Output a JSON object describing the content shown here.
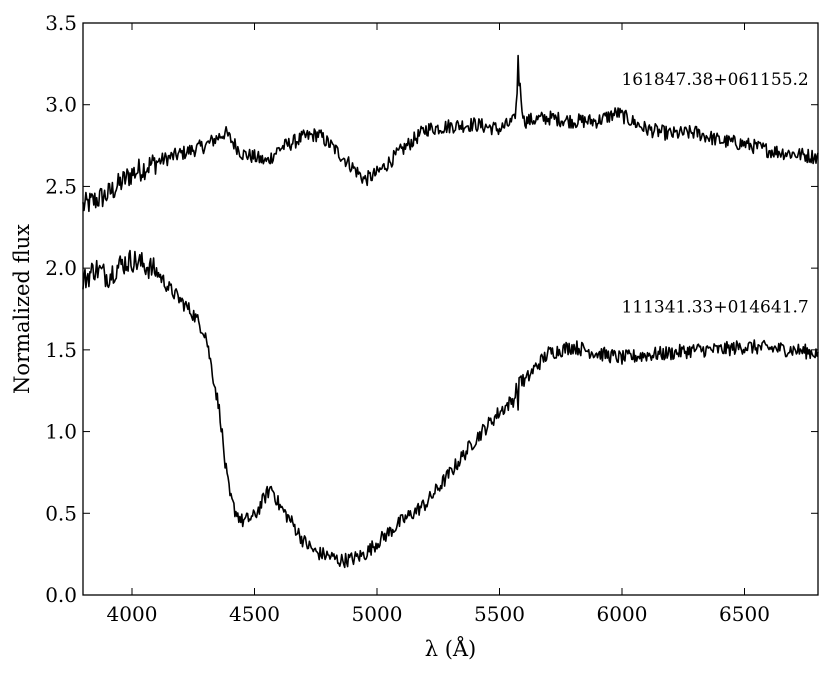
{
  "chart_data": {
    "type": "line",
    "title": "",
    "xlabel": "λ (Å)",
    "ylabel": "Normalized flux",
    "xlim": [
      3800,
      6800
    ],
    "ylim": [
      0.0,
      3.5
    ],
    "xticks": [
      4000,
      4500,
      5000,
      5500,
      6000,
      6500
    ],
    "xtick_labels": [
      "4000",
      "4500",
      "5000",
      "5500",
      "6000",
      "6500"
    ],
    "yticks": [
      0.0,
      0.5,
      1.0,
      1.5,
      2.0,
      2.5,
      3.0,
      3.5
    ],
    "ytick_labels": [
      "0.0",
      "0.5",
      "1.0",
      "1.5",
      "2.0",
      "2.5",
      "3.0",
      "3.5"
    ],
    "grid": false,
    "legend": "none",
    "line_color": "#000000",
    "series": [
      {
        "name": "161847.38+061155.2",
        "x": [
          3800,
          3900,
          4000,
          4100,
          4200,
          4300,
          4380,
          4450,
          4500,
          4550,
          4600,
          4700,
          4760,
          4820,
          4880,
          4950,
          5000,
          5100,
          5200,
          5300,
          5400,
          5500,
          5560,
          5580,
          5600,
          5700,
          5800,
          5900,
          5980,
          6100,
          6200,
          6300,
          6400,
          6500,
          6600,
          6700,
          6800
        ],
        "y": [
          2.38,
          2.45,
          2.58,
          2.65,
          2.7,
          2.75,
          2.83,
          2.7,
          2.68,
          2.65,
          2.73,
          2.8,
          2.82,
          2.74,
          2.65,
          2.54,
          2.58,
          2.72,
          2.85,
          2.87,
          2.88,
          2.85,
          2.9,
          3.15,
          2.9,
          2.92,
          2.9,
          2.9,
          2.95,
          2.85,
          2.82,
          2.83,
          2.78,
          2.76,
          2.72,
          2.7,
          2.68
        ]
      },
      {
        "name": "111341.33+014641.7",
        "x": [
          3800,
          3850,
          3900,
          3950,
          4000,
          4050,
          4100,
          4150,
          4200,
          4250,
          4300,
          4330,
          4360,
          4380,
          4400,
          4420,
          4450,
          4500,
          4550,
          4570,
          4600,
          4650,
          4700,
          4750,
          4800,
          4850,
          4900,
          4950,
          5000,
          5100,
          5200,
          5300,
          5400,
          5500,
          5560,
          5580,
          5600,
          5650,
          5700,
          5800,
          5900,
          6000,
          6100,
          6200,
          6300,
          6400,
          6500,
          6600,
          6700,
          6800
        ],
        "y": [
          1.92,
          2.0,
          1.95,
          2.02,
          2.05,
          2.02,
          1.98,
          1.88,
          1.8,
          1.72,
          1.6,
          1.35,
          1.1,
          0.8,
          0.6,
          0.52,
          0.45,
          0.48,
          0.62,
          0.66,
          0.55,
          0.45,
          0.33,
          0.26,
          0.24,
          0.21,
          0.22,
          0.25,
          0.32,
          0.45,
          0.56,
          0.75,
          0.95,
          1.12,
          1.2,
          1.35,
          1.3,
          1.4,
          1.48,
          1.52,
          1.48,
          1.45,
          1.47,
          1.48,
          1.5,
          1.5,
          1.52,
          1.51,
          1.5,
          1.48
        ]
      }
    ],
    "annotations": [
      {
        "text": "161847.38+061155.2",
        "x": 6380,
        "y": 3.12
      },
      {
        "text": "111341.33+014641.7",
        "x": 6380,
        "y": 1.73
      }
    ]
  }
}
